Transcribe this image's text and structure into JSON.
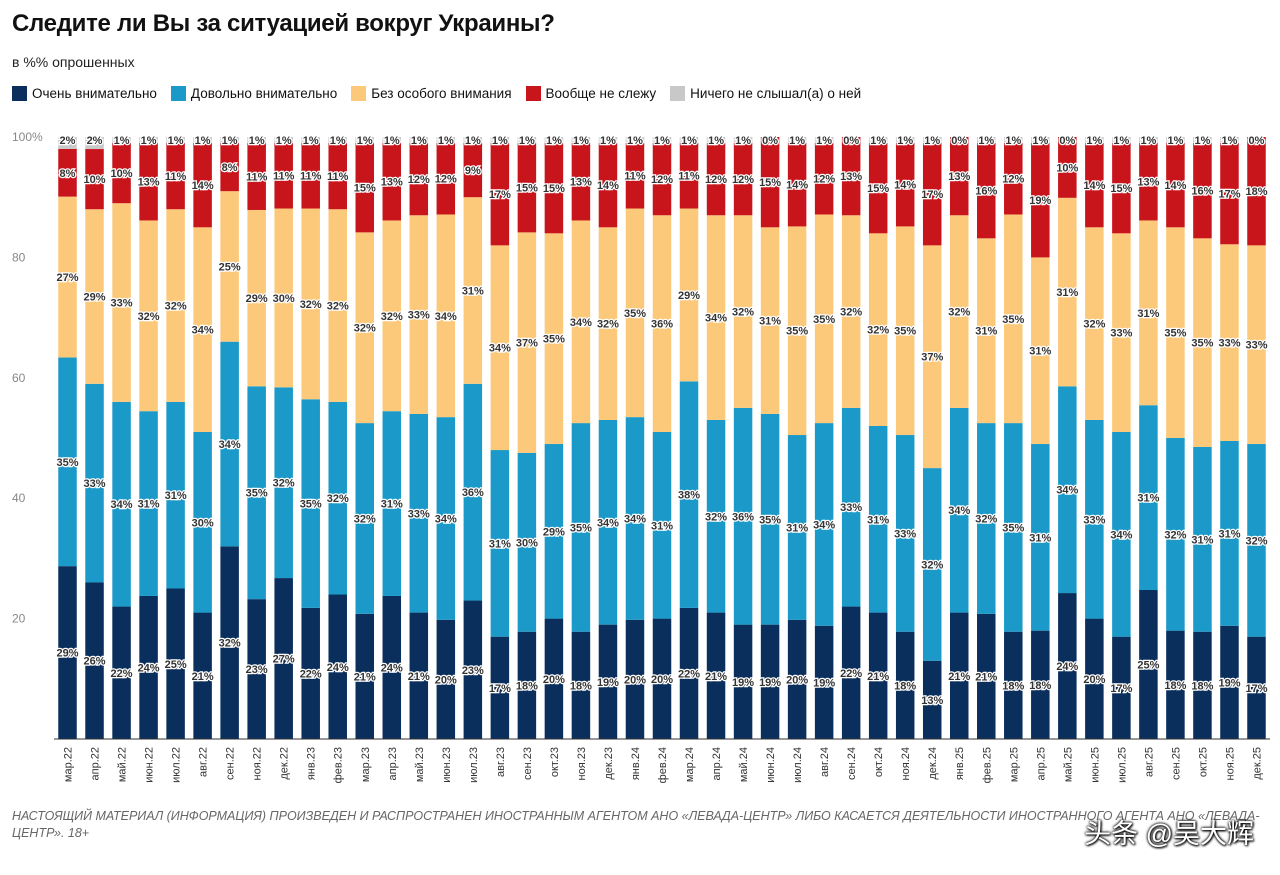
{
  "title": "Следите ли Вы за ситуацией вокруг Украины?",
  "subtitle": "в %% опрошенных",
  "colors": {
    "very": "#0b2f5c",
    "fairly": "#1b9ac9",
    "without": "#fcc97a",
    "not": "#c8141b",
    "never": "#c8c8c8",
    "axis": "#888888",
    "label_text": "#333333"
  },
  "legend": [
    {
      "label": "Очень внимательно",
      "color": "#0b2f5c"
    },
    {
      "label": "Довольно внимательно",
      "color": "#1b9ac9"
    },
    {
      "label": "Без особого внимания",
      "color": "#fcc97a"
    },
    {
      "label": "Вообще не слежу",
      "color": "#c8141b"
    },
    {
      "label": "Ничего не слышал(а) о ней",
      "color": "#c8c8c8"
    }
  ],
  "chart_data": {
    "type": "bar",
    "stacked": true,
    "ylim": [
      0,
      100
    ],
    "yticks": [
      100,
      80,
      60,
      40,
      20
    ],
    "ytick_labels": [
      "100%",
      "80",
      "60",
      "40",
      "20"
    ],
    "value_suffix": "%",
    "categories": [
      "мар.22",
      "апр.22",
      "май.22",
      "июн.22",
      "июл.22",
      "авг.22",
      "сен.22",
      "ноя.22",
      "дек.22",
      "янв.23",
      "фев.23",
      "мар.23",
      "апр.23",
      "май.23",
      "июн.23",
      "июл.23",
      "авг.23",
      "сен.23",
      "окт.23",
      "ноя.23",
      "дек.23",
      "янв.24",
      "фев.24",
      "мар.24",
      "апр.24",
      "май.24",
      "июн.24",
      "июл.24",
      "авг.24",
      "сен.24",
      "окт.24",
      "ноя.24",
      "дек.24",
      "янв.25",
      "фев.25",
      "мар.25",
      "апр.25",
      "май.25",
      "июн.25",
      "июл.25",
      "авг.25",
      "сен.25",
      "окт.25",
      "ноя.25",
      "дек.25"
    ],
    "series": [
      {
        "name": "Очень внимательно",
        "key": "very",
        "values": [
          29,
          26,
          22,
          24,
          25,
          21,
          32,
          23,
          27,
          22,
          24,
          21,
          24,
          21,
          20,
          23,
          17,
          18,
          20,
          18,
          19,
          20,
          20,
          22,
          21,
          19,
          19,
          20,
          19,
          22,
          21,
          18,
          13,
          21,
          21,
          18,
          18,
          24,
          20,
          17,
          25,
          18,
          18,
          19,
          17
        ]
      },
      {
        "name": "Довольно внимательно",
        "key": "fairly",
        "values": [
          35,
          33,
          34,
          31,
          31,
          30,
          34,
          35,
          32,
          35,
          32,
          32,
          31,
          33,
          34,
          36,
          31,
          30,
          29,
          35,
          34,
          34,
          31,
          38,
          32,
          36,
          35,
          31,
          34,
          33,
          31,
          33,
          32,
          34,
          32,
          35,
          31,
          34,
          33,
          34,
          31,
          32,
          31,
          31,
          32
        ]
      },
      {
        "name": "Без особого внимания",
        "key": "without",
        "values": [
          27,
          29,
          33,
          32,
          32,
          34,
          25,
          29,
          30,
          32,
          32,
          32,
          32,
          33,
          34,
          31,
          34,
          37,
          35,
          34,
          32,
          35,
          36,
          29,
          34,
          32,
          31,
          35,
          35,
          32,
          32,
          35,
          37,
          32,
          31,
          35,
          31,
          31,
          32,
          33,
          31,
          35,
          35,
          33,
          33
        ]
      },
      {
        "name": "Вообще не слежу",
        "key": "not",
        "values": [
          8,
          10,
          10,
          13,
          11,
          14,
          8,
          11,
          11,
          11,
          11,
          15,
          13,
          12,
          12,
          9,
          17,
          15,
          15,
          13,
          14,
          11,
          12,
          11,
          12,
          12,
          15,
          14,
          12,
          13,
          15,
          14,
          17,
          13,
          16,
          12,
          19,
          10,
          14,
          15,
          13,
          14,
          16,
          17,
          18
        ]
      },
      {
        "name": "Ничего не слышал(а) о ней",
        "key": "never",
        "values": [
          2,
          2,
          1,
          1,
          1,
          1,
          1,
          1,
          1,
          1,
          1,
          1,
          1,
          1,
          1,
          1,
          1,
          1,
          1,
          1,
          1,
          1,
          1,
          1,
          1,
          1,
          0,
          1,
          1,
          0,
          1,
          1,
          1,
          0,
          1,
          1,
          1,
          0,
          1,
          1,
          1,
          1,
          1,
          1,
          0
        ]
      }
    ]
  },
  "footnote": "НАСТОЯЩИЙ МАТЕРИАЛ (ИНФОРМАЦИЯ) ПРОИЗВЕДЕН И РАСПРОСТРАНЕН ИНОСТРАННЫМ АГЕНТОМ АНО «ЛЕВАДА-ЦЕНТР» ЛИБО КАСАЕТСЯ ДЕЯТЕЛЬНОСТИ ИНОСТРАННОГО АГЕНТА АНО «ЛЕВАДА-ЦЕНТР». 18+",
  "watermark": "头条 @吴大辉"
}
